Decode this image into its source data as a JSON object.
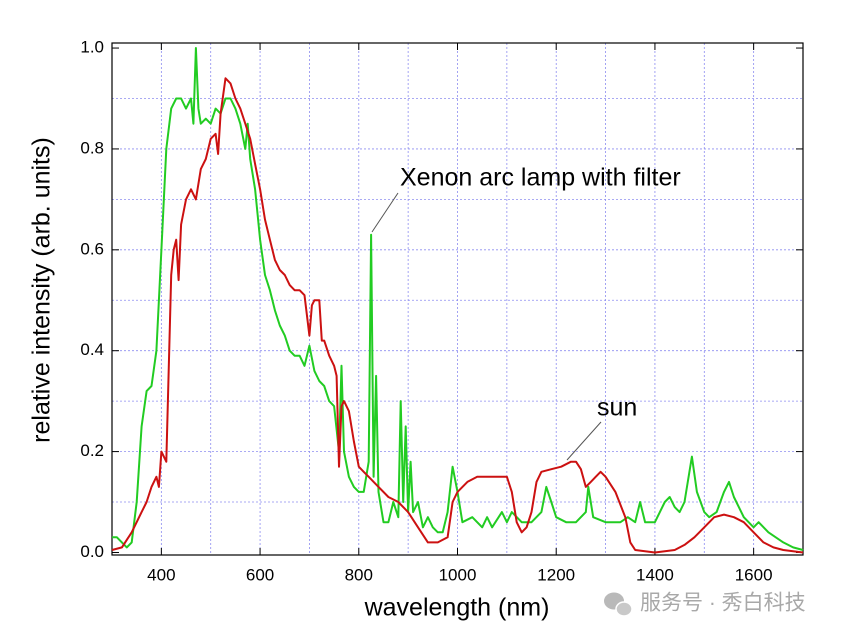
{
  "chart_data": {
    "type": "line",
    "xlabel": "wavelength (nm)",
    "ylabel": "relative intensity (arb. units)",
    "xlim": [
      300,
      1700
    ],
    "ylim": [
      -0.005,
      1.01
    ],
    "xticks": [
      400,
      600,
      800,
      1000,
      1200,
      1400,
      1600
    ],
    "yticks": [
      {
        "value": 0,
        "label": "0.0"
      },
      0.2,
      0.4,
      0.6,
      0.8,
      {
        "value": 1,
        "label": "1.0"
      }
    ],
    "xgrid": [
      400,
      500,
      600,
      700,
      800,
      900,
      1000,
      1100,
      1200,
      1300,
      1400,
      1500,
      1600
    ],
    "ygrid": [
      0.1,
      0.2,
      0.3,
      0.4,
      0.5,
      0.6,
      0.7,
      0.8,
      0.9
    ],
    "grid": true,
    "series": [
      {
        "name": "Xenon arc lamp with filter",
        "color": "#22cc22",
        "x": [
          300,
          310,
          320,
          330,
          340,
          350,
          360,
          370,
          380,
          390,
          400,
          410,
          420,
          430,
          440,
          450,
          460,
          465,
          470,
          475,
          480,
          490,
          500,
          510,
          520,
          530,
          540,
          550,
          560,
          570,
          575,
          580,
          590,
          600,
          610,
          620,
          630,
          640,
          650,
          660,
          670,
          680,
          690,
          700,
          710,
          720,
          730,
          740,
          750,
          760,
          765,
          770,
          780,
          790,
          800,
          810,
          820,
          825,
          830,
          835,
          840,
          850,
          860,
          870,
          880,
          885,
          890,
          895,
          900,
          905,
          910,
          920,
          930,
          940,
          950,
          960,
          970,
          980,
          990,
          1000,
          1010,
          1030,
          1050,
          1060,
          1070,
          1090,
          1100,
          1110,
          1130,
          1150,
          1170,
          1180,
          1190,
          1200,
          1220,
          1240,
          1260,
          1265,
          1275,
          1300,
          1330,
          1345,
          1360,
          1370,
          1380,
          1400,
          1420,
          1430,
          1440,
          1450,
          1460,
          1475,
          1485,
          1500,
          1510,
          1525,
          1540,
          1550,
          1560,
          1580,
          1600,
          1610,
          1630,
          1660,
          1680,
          1700
        ],
        "values": [
          0.03,
          0.03,
          0.02,
          0.01,
          0.02,
          0.1,
          0.25,
          0.32,
          0.33,
          0.4,
          0.6,
          0.8,
          0.88,
          0.9,
          0.9,
          0.88,
          0.9,
          0.85,
          1.0,
          0.88,
          0.85,
          0.86,
          0.85,
          0.88,
          0.87,
          0.9,
          0.9,
          0.88,
          0.85,
          0.8,
          0.85,
          0.78,
          0.72,
          0.62,
          0.55,
          0.52,
          0.48,
          0.45,
          0.43,
          0.4,
          0.39,
          0.39,
          0.37,
          0.41,
          0.36,
          0.34,
          0.33,
          0.3,
          0.29,
          0.2,
          0.37,
          0.2,
          0.15,
          0.13,
          0.12,
          0.12,
          0.18,
          0.63,
          0.15,
          0.35,
          0.12,
          0.06,
          0.06,
          0.1,
          0.07,
          0.3,
          0.1,
          0.25,
          0.08,
          0.18,
          0.08,
          0.1,
          0.05,
          0.07,
          0.05,
          0.04,
          0.04,
          0.08,
          0.17,
          0.12,
          0.06,
          0.07,
          0.05,
          0.07,
          0.05,
          0.08,
          0.06,
          0.08,
          0.06,
          0.06,
          0.08,
          0.13,
          0.1,
          0.07,
          0.06,
          0.06,
          0.08,
          0.13,
          0.07,
          0.06,
          0.06,
          0.07,
          0.06,
          0.1,
          0.06,
          0.06,
          0.1,
          0.11,
          0.09,
          0.08,
          0.1,
          0.19,
          0.12,
          0.08,
          0.07,
          0.08,
          0.12,
          0.14,
          0.11,
          0.07,
          0.05,
          0.06,
          0.04,
          0.02,
          0.01,
          0.005
        ]
      },
      {
        "name": "sun",
        "color": "#cc1111",
        "x": [
          300,
          320,
          340,
          360,
          370,
          380,
          390,
          395,
          400,
          410,
          420,
          425,
          430,
          435,
          440,
          450,
          460,
          470,
          480,
          490,
          500,
          510,
          515,
          520,
          530,
          540,
          550,
          560,
          570,
          580,
          590,
          600,
          610,
          620,
          630,
          640,
          650,
          660,
          670,
          680,
          690,
          700,
          705,
          710,
          720,
          725,
          730,
          740,
          750,
          755,
          760,
          765,
          770,
          780,
          790,
          800,
          810,
          820,
          840,
          860,
          880,
          900,
          920,
          940,
          960,
          980,
          990,
          1000,
          1020,
          1040,
          1060,
          1080,
          1100,
          1110,
          1120,
          1130,
          1140,
          1150,
          1160,
          1170,
          1190,
          1210,
          1230,
          1240,
          1250,
          1260,
          1270,
          1280,
          1290,
          1300,
          1320,
          1340,
          1350,
          1360,
          1400,
          1440,
          1460,
          1480,
          1500,
          1520,
          1540,
          1560,
          1580,
          1600,
          1620,
          1640,
          1660,
          1700
        ],
        "values": [
          0.005,
          0.01,
          0.04,
          0.08,
          0.1,
          0.13,
          0.15,
          0.13,
          0.2,
          0.18,
          0.55,
          0.6,
          0.62,
          0.54,
          0.65,
          0.7,
          0.72,
          0.7,
          0.76,
          0.78,
          0.82,
          0.83,
          0.79,
          0.87,
          0.94,
          0.93,
          0.9,
          0.88,
          0.85,
          0.82,
          0.77,
          0.72,
          0.66,
          0.62,
          0.58,
          0.56,
          0.55,
          0.53,
          0.52,
          0.52,
          0.51,
          0.43,
          0.49,
          0.5,
          0.5,
          0.42,
          0.42,
          0.39,
          0.37,
          0.35,
          0.17,
          0.29,
          0.3,
          0.28,
          0.22,
          0.17,
          0.16,
          0.15,
          0.13,
          0.11,
          0.1,
          0.08,
          0.05,
          0.02,
          0.02,
          0.03,
          0.1,
          0.12,
          0.14,
          0.15,
          0.15,
          0.15,
          0.15,
          0.12,
          0.06,
          0.04,
          0.05,
          0.08,
          0.14,
          0.16,
          0.165,
          0.17,
          0.18,
          0.18,
          0.165,
          0.13,
          0.14,
          0.15,
          0.16,
          0.15,
          0.12,
          0.07,
          0.02,
          0.005,
          0,
          0.005,
          0.015,
          0.03,
          0.05,
          0.07,
          0.075,
          0.07,
          0.06,
          0.04,
          0.02,
          0.01,
          0.005,
          0
        ]
      }
    ]
  },
  "watermark": "服务号 · 秀白科技"
}
